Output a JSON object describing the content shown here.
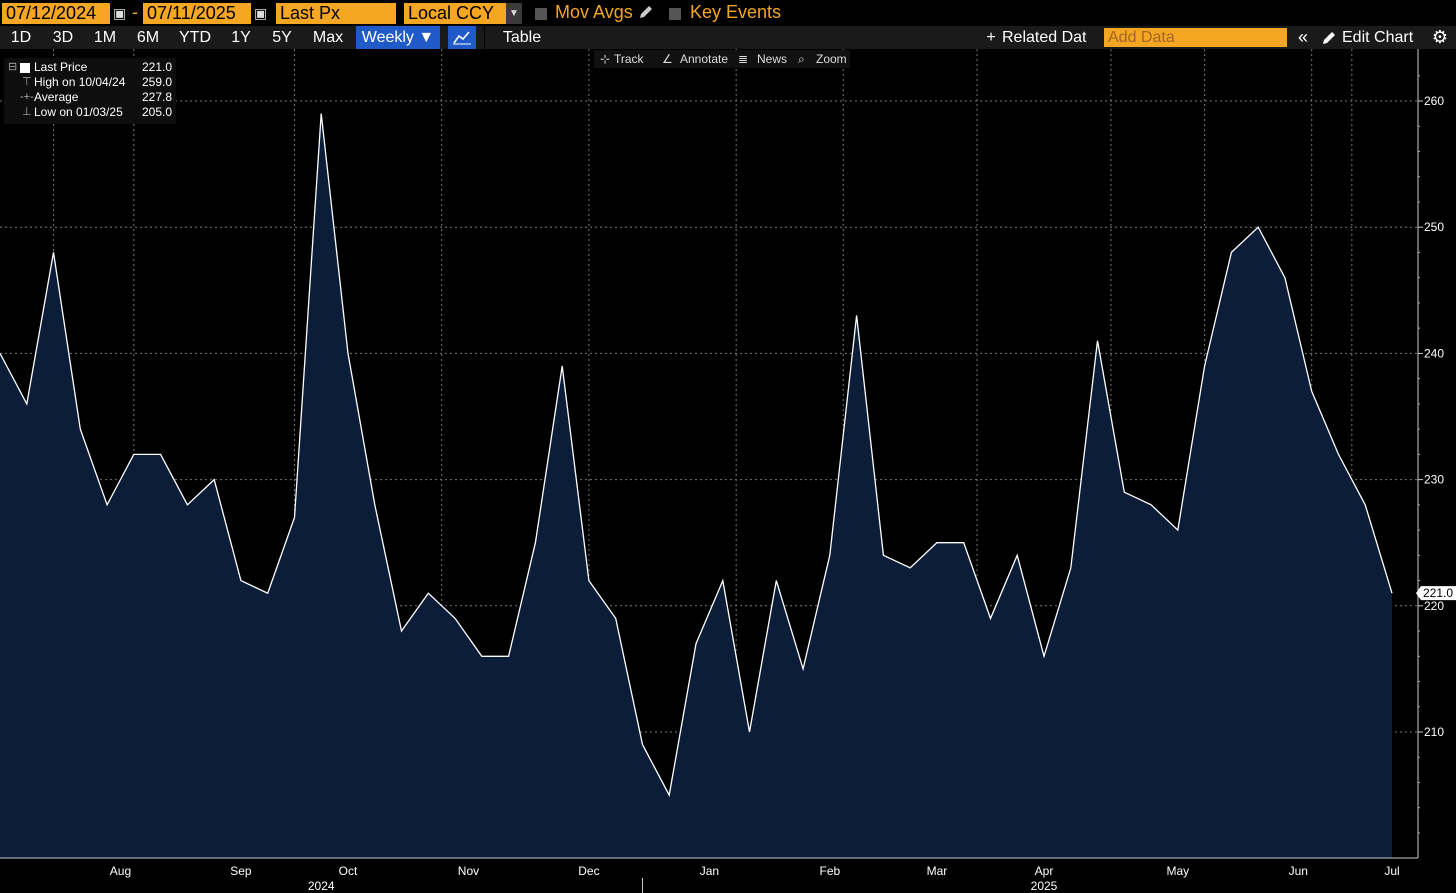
{
  "toolbar_top": {
    "start_date": "07/12/2024",
    "separator": "-",
    "end_date": "07/11/2025",
    "field": "Last Px",
    "currency": "Local CCY",
    "mov_avgs_label": "Mov Avgs",
    "key_events_label": "Key Events"
  },
  "toolbar_periods": {
    "items": [
      "1D",
      "3D",
      "1M",
      "6M",
      "YTD",
      "1Y",
      "5Y",
      "Max"
    ],
    "frequency": "Weekly ▼",
    "table_label": "Table",
    "related_data_label": "Related Dat",
    "add_data_placeholder": "Add Data",
    "edit_chart_label": "Edit Chart"
  },
  "chart_tools": {
    "track": "Track",
    "annotate": "Annotate",
    "news": "News",
    "zoom": "Zoom"
  },
  "legend": {
    "last_price_label": "Last Price",
    "last_price_value": "221.0",
    "high_label": "High on 10/04/24",
    "high_value": "259.0",
    "average_label": "Average",
    "average_value": "227.8",
    "low_label": "Low on 01/03/25",
    "low_value": "205.0"
  },
  "colors": {
    "accent_orange": "#f5a623",
    "active_blue": "#1f5ac8",
    "area_fill": "#0b1d38",
    "line": "#ffffff"
  },
  "chart_data": {
    "type": "area",
    "frequency": "weekly",
    "ylim": [
      200,
      262
    ],
    "yticks": [
      210,
      220,
      230,
      240,
      250,
      260
    ],
    "last_value_label": "221.0",
    "x_month_labels": [
      "Aug",
      "Sep",
      "Oct",
      "Nov",
      "Dec",
      "Jan",
      "Feb",
      "Mar",
      "Apr",
      "May",
      "Jun",
      "Jul"
    ],
    "x_year_labels": [
      "2024",
      "2025"
    ],
    "series": [
      {
        "name": "Last Price",
        "values": [
          240,
          236,
          248,
          234,
          228,
          232,
          232,
          228,
          230,
          222,
          221,
          227,
          259,
          240,
          228,
          218,
          221,
          219,
          216,
          216,
          225,
          239,
          222,
          219,
          209,
          205,
          217,
          222,
          210,
          222,
          215,
          224,
          243,
          224,
          223,
          225,
          225,
          219,
          224,
          216,
          223,
          241,
          229,
          228,
          226,
          239,
          248,
          250,
          246,
          237,
          232,
          228,
          221
        ]
      }
    ]
  }
}
